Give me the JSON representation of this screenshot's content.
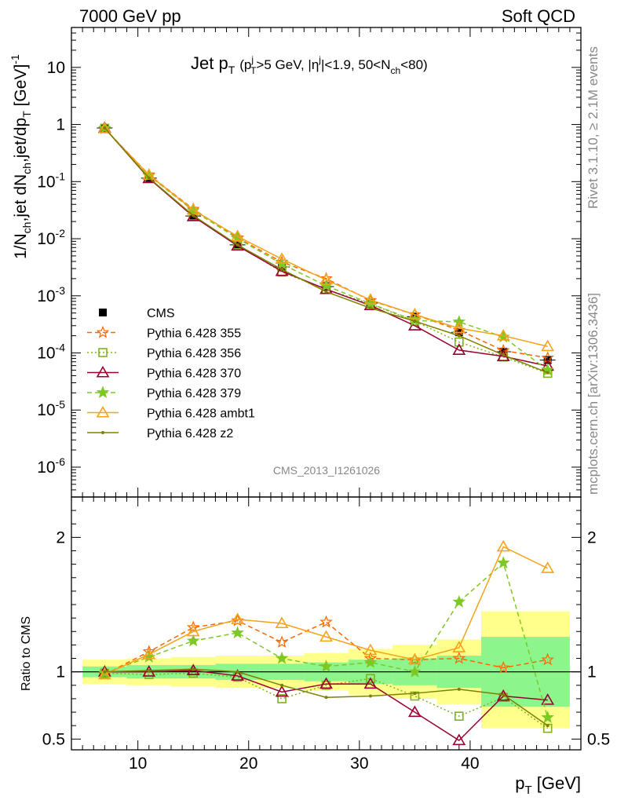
{
  "header": {
    "left": "7000 GeV pp",
    "right": "Soft QCD"
  },
  "side_text": {
    "rivet": "Rivet 3.1.10, ≥ 2.1M events",
    "mcplots": "mcplots.cern.ch [arXiv:1306.3436]"
  },
  "watermark": "CMS_2013_I1261026",
  "chart_data": [
    {
      "type": "line",
      "panel": "main",
      "title": "Jet pT (pTj>5 GeV, |ηj|<1.9, 50<Nch<80)",
      "title_parts": {
        "main": "Jet p",
        "sub1": "T",
        "open": "(p",
        "sub2": "T",
        "sup2": "j",
        "mid": ">5 GeV, |η",
        "sup3": "j",
        "mid2": "|<1.9, 50<N",
        "sub3": "ch",
        "close": "<80)"
      },
      "ylabel": "1/Nch,jet dNch,jet/dpT [GeV]-1",
      "yscale": "log",
      "ylim": [
        3e-07,
        50
      ],
      "xlim": [
        4,
        50
      ],
      "ytick_labels": [
        "10",
        "1",
        "10^-1",
        "10^-2",
        "10^-3",
        "10^-4",
        "10^-5",
        "10^-6"
      ],
      "x": [
        7,
        11,
        15,
        19,
        23,
        27,
        31,
        35,
        39,
        43,
        47
      ],
      "legend_position": "lower-left",
      "series": [
        {
          "name": "CMS",
          "style": "data",
          "color": "#000000",
          "values": [
            0.87,
            0.115,
            0.025,
            0.0078,
            0.0032,
            0.00145,
            0.00075,
            0.00043,
            0.00023,
            0.000105,
            7.5e-05
          ]
        },
        {
          "name": "Pythia 6.428 355",
          "style": "dashed",
          "marker": "star-open",
          "color": "#ff6600",
          "values": [
            0.85,
            0.132,
            0.033,
            0.0104,
            0.0039,
            0.002,
            0.00083,
            0.00047,
            0.00025,
            0.00011,
            8.2e-05
          ]
        },
        {
          "name": "Pythia 6.428 356",
          "style": "dotted",
          "marker": "square-open",
          "color": "#7fb21f",
          "values": [
            0.86,
            0.114,
            0.025,
            0.0078,
            0.0026,
            0.0013,
            0.00072,
            0.00036,
            0.000155,
            8.5e-05,
            4.4e-05
          ]
        },
        {
          "name": "Pythia 6.428 370",
          "style": "solid",
          "marker": "triangle-open",
          "color": "#99002e",
          "values": [
            0.87,
            0.114,
            0.0245,
            0.0075,
            0.0027,
            0.0013,
            0.00068,
            0.0003,
            0.000112,
            8.7e-05,
            5.9e-05
          ]
        },
        {
          "name": "Pythia 6.428 379",
          "style": "dashed",
          "marker": "star",
          "color": "#7dc824",
          "values": [
            0.86,
            0.127,
            0.031,
            0.0101,
            0.0036,
            0.0015,
            0.00073,
            0.00037,
            0.00035,
            0.00019,
            5e-05
          ]
        },
        {
          "name": "Pythia 6.428 ambt1",
          "style": "solid",
          "marker": "triangle-open",
          "color": "#f5a318",
          "values": [
            0.85,
            0.13,
            0.032,
            0.011,
            0.0044,
            0.0019,
            0.00085,
            0.00047,
            0.00027,
            0.0002,
            0.00013
          ]
        },
        {
          "name": "Pythia 6.428 z2",
          "style": "solid",
          "marker": "dot",
          "color": "#808000",
          "values": [
            0.87,
            0.116,
            0.0255,
            0.0078,
            0.0029,
            0.00118,
            0.00061,
            0.00036,
            0.0002,
            9.2e-05,
            4.5e-05
          ]
        }
      ]
    },
    {
      "type": "line",
      "panel": "ratio",
      "ylabel": "Ratio to CMS",
      "xlabel": "pT [GeV]",
      "xlabel_parts": {
        "main": "p",
        "sub": "T",
        "unit": " [GeV]"
      },
      "ylim": [
        0.42,
        2.3
      ],
      "xlim": [
        4,
        50
      ],
      "xtick_labels": [
        "10",
        "20",
        "30",
        "40"
      ],
      "ytick_labels": [
        "0.5",
        "1",
        "2"
      ],
      "x": [
        7,
        11,
        15,
        19,
        23,
        27,
        31,
        35,
        39,
        43,
        47
      ],
      "bands": {
        "green": [
          [
            0.96,
            1.04
          ],
          [
            0.95,
            1.05
          ],
          [
            0.95,
            1.05
          ],
          [
            0.94,
            1.06
          ],
          [
            0.94,
            1.06
          ],
          [
            0.93,
            1.07
          ],
          [
            0.91,
            1.09
          ],
          [
            0.9,
            1.1
          ],
          [
            0.88,
            1.12
          ],
          [
            0.74,
            1.26
          ],
          [
            0.74,
            1.26
          ]
        ],
        "yellow": [
          [
            0.91,
            1.09
          ],
          [
            0.9,
            1.1
          ],
          [
            0.89,
            1.11
          ],
          [
            0.88,
            1.12
          ],
          [
            0.88,
            1.12
          ],
          [
            0.86,
            1.14
          ],
          [
            0.83,
            1.17
          ],
          [
            0.8,
            1.2
          ],
          [
            0.76,
            1.24
          ],
          [
            0.58,
            1.45
          ],
          [
            0.58,
            1.45
          ]
        ]
      },
      "series": [
        {
          "name": "Pythia 6.428 355",
          "color": "#ff6600",
          "style": "dashed",
          "marker": "star-open",
          "values": [
            0.98,
            1.15,
            1.33,
            1.38,
            1.22,
            1.37,
            1.1,
            1.09,
            1.1,
            1.03,
            1.09
          ]
        },
        {
          "name": "Pythia 6.428 356",
          "color": "#7fb21f",
          "style": "dotted",
          "marker": "square-open",
          "values": [
            0.99,
            0.98,
            0.99,
            0.96,
            0.8,
            0.9,
            0.95,
            0.82,
            0.67,
            0.81,
            0.58
          ]
        },
        {
          "name": "Pythia 6.428 370",
          "color": "#99002e",
          "style": "solid",
          "marker": "triangle-open",
          "values": [
            1.0,
            1.0,
            1.01,
            0.97,
            0.85,
            0.91,
            0.91,
            0.7,
            0.49,
            0.82,
            0.79
          ]
        },
        {
          "name": "Pythia 6.428 379",
          "color": "#7dc824",
          "style": "dashed",
          "marker": "star",
          "values": [
            0.99,
            1.11,
            1.23,
            1.29,
            1.1,
            1.04,
            1.07,
            1.0,
            1.52,
            1.81,
            0.66
          ]
        },
        {
          "name": "Pythia 6.428 ambt1",
          "color": "#f5a318",
          "style": "solid",
          "marker": "triangle-open",
          "values": [
            0.98,
            1.13,
            1.3,
            1.39,
            1.36,
            1.26,
            1.16,
            1.09,
            1.18,
            1.93,
            1.77
          ]
        },
        {
          "name": "Pythia 6.428 z2",
          "color": "#808000",
          "style": "solid",
          "marker": "dot",
          "values": [
            1.0,
            1.01,
            1.02,
            1.0,
            0.9,
            0.81,
            0.82,
            0.84,
            0.87,
            0.83,
            0.6
          ]
        }
      ]
    }
  ]
}
